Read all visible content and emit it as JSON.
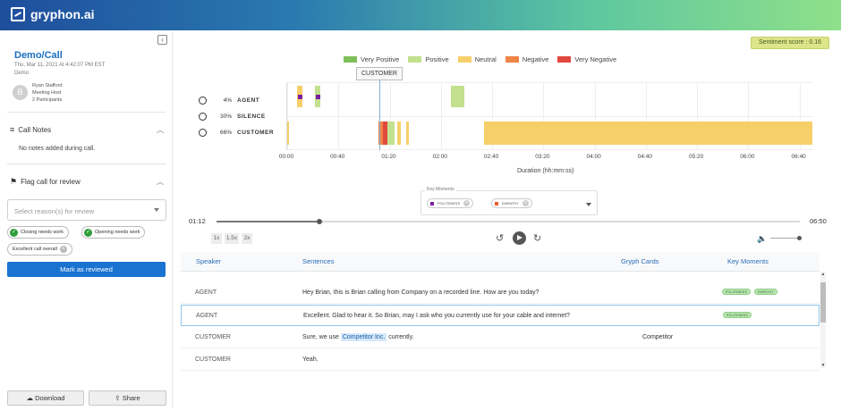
{
  "app": {
    "title": "gryphon.ai"
  },
  "sidebar": {
    "call_title": "Demo/Call",
    "call_date": "Thu, Mar 11, 2021 At 4:42:07 PM EST",
    "call_type": "Demo",
    "avatar_letter": "B",
    "host_name": "Ryan Stafford",
    "host_role": "Meeting Host",
    "participants": "2 Participants",
    "call_notes_title": "Call Notes",
    "no_notes": "No notes added during call.",
    "flag_title": "Flag call for review",
    "select_placeholder": "Select reason(s) for review",
    "chips": [
      "Closing needs work",
      "Opening needs work",
      "Excellent call overall"
    ],
    "review_button": "Mark as reviewed",
    "download_button": "Download",
    "share_button": "Share"
  },
  "sentiment": {
    "label": "Sentiment score : 0.16",
    "score": 0.16
  },
  "legend": [
    {
      "label": "Very Positive",
      "color": "#7fbf58"
    },
    {
      "label": "Positive",
      "color": "#c2e08e"
    },
    {
      "label": "Neutral",
      "color": "#f6cf6b"
    },
    {
      "label": "Negative",
      "color": "#ef8447"
    },
    {
      "label": "Very Negative",
      "color": "#e2483e"
    }
  ],
  "tooltip": "CUSTOMER",
  "speakers": [
    {
      "percent": "4%",
      "name": "AGENT"
    },
    {
      "percent": "30%",
      "name": "SILENCE"
    },
    {
      "percent": "66%",
      "name": "CUSTOMER"
    }
  ],
  "chart_data": {
    "type": "timeline",
    "xlabel": "Duration (hh:mm:ss)",
    "x_ticks": [
      "00:00",
      "00:40",
      "01:20",
      "02:00",
      "02:40",
      "03:20",
      "04:00",
      "04:40",
      "05:20",
      "06:00",
      "06:40"
    ],
    "x_range_seconds": [
      0,
      410
    ],
    "series": [
      {
        "name": "AGENT",
        "segments": [
          {
            "start": 8,
            "end": 12,
            "sentiment": "Neutral"
          },
          {
            "start": 22,
            "end": 26,
            "sentiment": "Positive"
          },
          {
            "start": 128,
            "end": 138,
            "sentiment": "Positive"
          }
        ]
      },
      {
        "name": "CUSTOMER",
        "segments": [
          {
            "start": 0,
            "end": 1,
            "sentiment": "Neutral"
          },
          {
            "start": 71,
            "end": 75,
            "sentiment": "Negative"
          },
          {
            "start": 75,
            "end": 78,
            "sentiment": "Very Negative"
          },
          {
            "start": 78,
            "end": 84,
            "sentiment": "Positive"
          },
          {
            "start": 86,
            "end": 89,
            "sentiment": "Neutral"
          },
          {
            "start": 93,
            "end": 95,
            "sentiment": "Neutral"
          },
          {
            "start": 154,
            "end": 410,
            "sentiment": "Neutral"
          }
        ]
      }
    ],
    "key_moment_markers": [
      {
        "row": "AGENT",
        "t": 10,
        "color": "#7b1fa2"
      },
      {
        "row": "AGENT",
        "t": 24,
        "color": "#7b1fa2"
      }
    ],
    "cursor_t": 72
  },
  "key_moments": {
    "label": "Key Moments",
    "chips": [
      {
        "label": "POLITENESS",
        "color": "#7b1fa2"
      },
      {
        "label": "EMPATHY",
        "color": "#ef5a2b"
      }
    ]
  },
  "player": {
    "current_time": "01:12",
    "total_time": "06:50",
    "progress": 0.176,
    "speeds": [
      "1x",
      "1.5x",
      "2x"
    ],
    "volume": 0.95
  },
  "table": {
    "headers": [
      "Speaker",
      "Sentences",
      "Gryph Cards",
      "Key Moments"
    ],
    "rows": [
      {
        "speaker": "AGENT",
        "sentence": "Hey Brian, this is Brian calling from Company on a recorded line. How are you today?",
        "highlight": "",
        "sentence_after": "",
        "card": "",
        "tags": [
          "POLITENESS",
          "EMPATHY"
        ],
        "active": false
      },
      {
        "speaker": "AGENT",
        "sentence": "Excellent. Glad to hear it. So Brian, may I ask who you currently use for your cable and internet?",
        "highlight": "",
        "sentence_after": "",
        "card": "",
        "tags": [
          "POLITENESS"
        ],
        "active": true
      },
      {
        "speaker": "CUSTOMER",
        "sentence": "Sure, we use",
        "highlight": "Competitor Inc.",
        "sentence_after": "currently.",
        "card": "Competitor",
        "tags": [],
        "active": false
      },
      {
        "speaker": "CUSTOMER",
        "sentence": "Yeah.",
        "highlight": "",
        "sentence_after": "",
        "card": "",
        "tags": [],
        "active": false
      }
    ]
  }
}
